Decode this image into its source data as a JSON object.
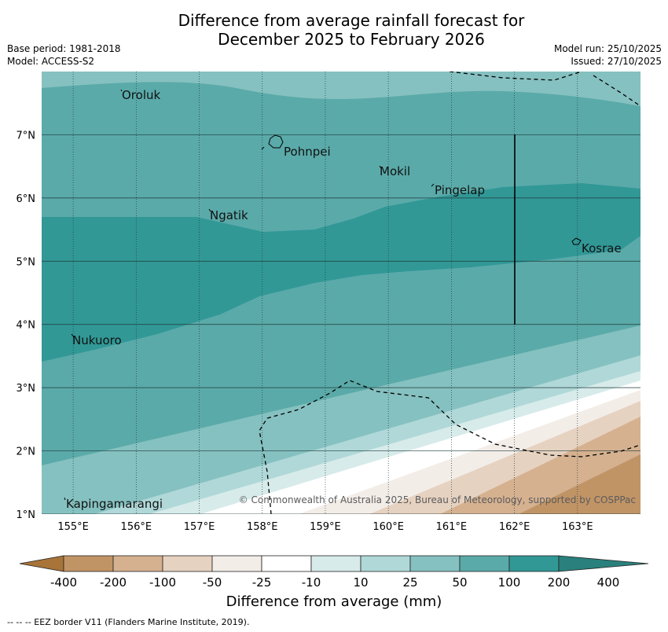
{
  "title": {
    "line1": "Difference from average rainfall forecast for",
    "line2": "December 2025 to February 2026"
  },
  "meta": {
    "base_period": "Base period: 1981-2018",
    "model": "Model: ACCESS-S2",
    "model_run": "Model run: 25/10/2025",
    "issued": "Issued: 27/10/2025"
  },
  "map": {
    "lon_range": [
      154.5,
      164.0
    ],
    "lat_range": [
      1.0,
      8.0
    ],
    "lon_ticks": [
      "155°E",
      "156°E",
      "157°E",
      "158°E",
      "159°E",
      "160°E",
      "161°E",
      "162°E",
      "163°E"
    ],
    "lat_ticks": [
      "1°N",
      "2°N",
      "3°N",
      "4°N",
      "5°N",
      "6°N",
      "7°N"
    ],
    "places": [
      "Oroluk",
      "Pohnpei",
      "Mokil",
      "Pingelap",
      "Ngatik",
      "Kosrae",
      "Nukuoro",
      "Kapingamarangi"
    ],
    "copyright": "© Commonwealth of Australia 2025, Bureau of Meteorology, supported by COSPPac"
  },
  "colorbar": {
    "ticks": [
      "-400",
      "-200",
      "-100",
      "-50",
      "-25",
      "-10",
      "10",
      "25",
      "50",
      "100",
      "200",
      "400"
    ],
    "colors": [
      "#a87438",
      "#c19466",
      "#d5b190",
      "#e6d2c0",
      "#f3ede8",
      "#ffffff",
      "#d7ebea",
      "#b0d8d8",
      "#85c1c0",
      "#5aaaa9",
      "#319896",
      "#2a807c"
    ],
    "label": "Difference from average (mm)"
  },
  "footer": "--  --  -- EEZ border V11 (Flanders Marine Institute, 2019)."
}
